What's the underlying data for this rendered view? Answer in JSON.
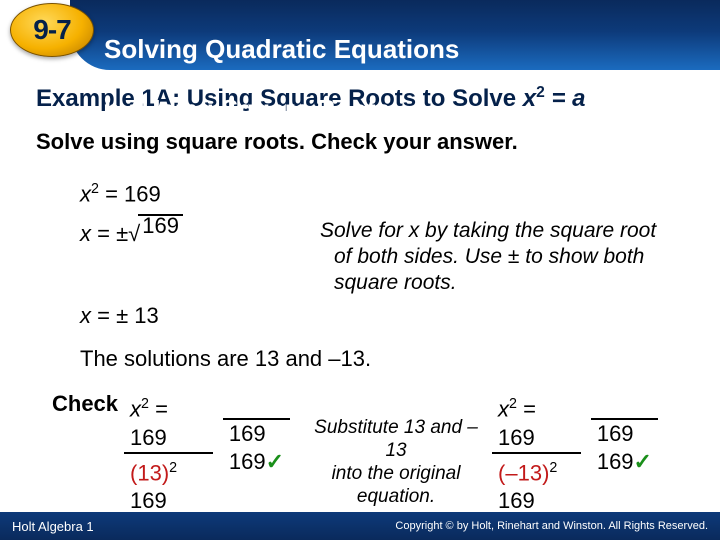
{
  "header": {
    "lesson_number": "9-7",
    "title_line1": "Solving Quadratic Equations",
    "title_line2": "by Using Square Roots"
  },
  "example": {
    "heading_prefix": "Example 1A: Using Square Roots to Solve ",
    "heading_eq_lhs": "x",
    "heading_eq_sup": "2",
    "heading_eq_rhs": " = a"
  },
  "instruction": "Solve using square roots. Check your answer.",
  "work": {
    "step1_lhs": "x",
    "step1_sup": "2",
    "step1_rhs": " = 169",
    "step2_prefix": "x = ±",
    "step2_radicand": "169",
    "step3": "x = ± 13",
    "explain_l1": "Solve for x by taking the square root",
    "explain_l2": "of both sides. Use ± to show both",
    "explain_l3": "square roots."
  },
  "solution": "The solutions are 13 and –13.",
  "check": {
    "label": "Check",
    "left": {
      "top_lhs": "x",
      "top_sup": "2",
      "top_rhs": " = 169",
      "r1a": "(13)",
      "r1a_sup": "2",
      "r1b": "169",
      "r2a": "169",
      "r2b": "169"
    },
    "middle_l1": "Substitute 13 and –13",
    "middle_l2": "into the original",
    "middle_l3": "equation.",
    "right": {
      "top_lhs": "x",
      "top_sup": "2",
      "top_rhs": " = 169",
      "r1a": "(–13)",
      "r1a_sup": "2",
      "r1b": "169",
      "r2a": "169",
      "r2b": "169"
    }
  },
  "footer": {
    "left": "Holt Algebra 1",
    "right": "Copyright © by Holt, Rinehart and Winston. All Rights Reserved."
  },
  "colors": {
    "header_dark": "#0a2a5c",
    "header_light": "#1b6bbf",
    "badge_gold": "#f6b100",
    "heading_navy": "#05214a",
    "sub_red": "#c21a1a",
    "tick_green": "#1a8f1a"
  }
}
